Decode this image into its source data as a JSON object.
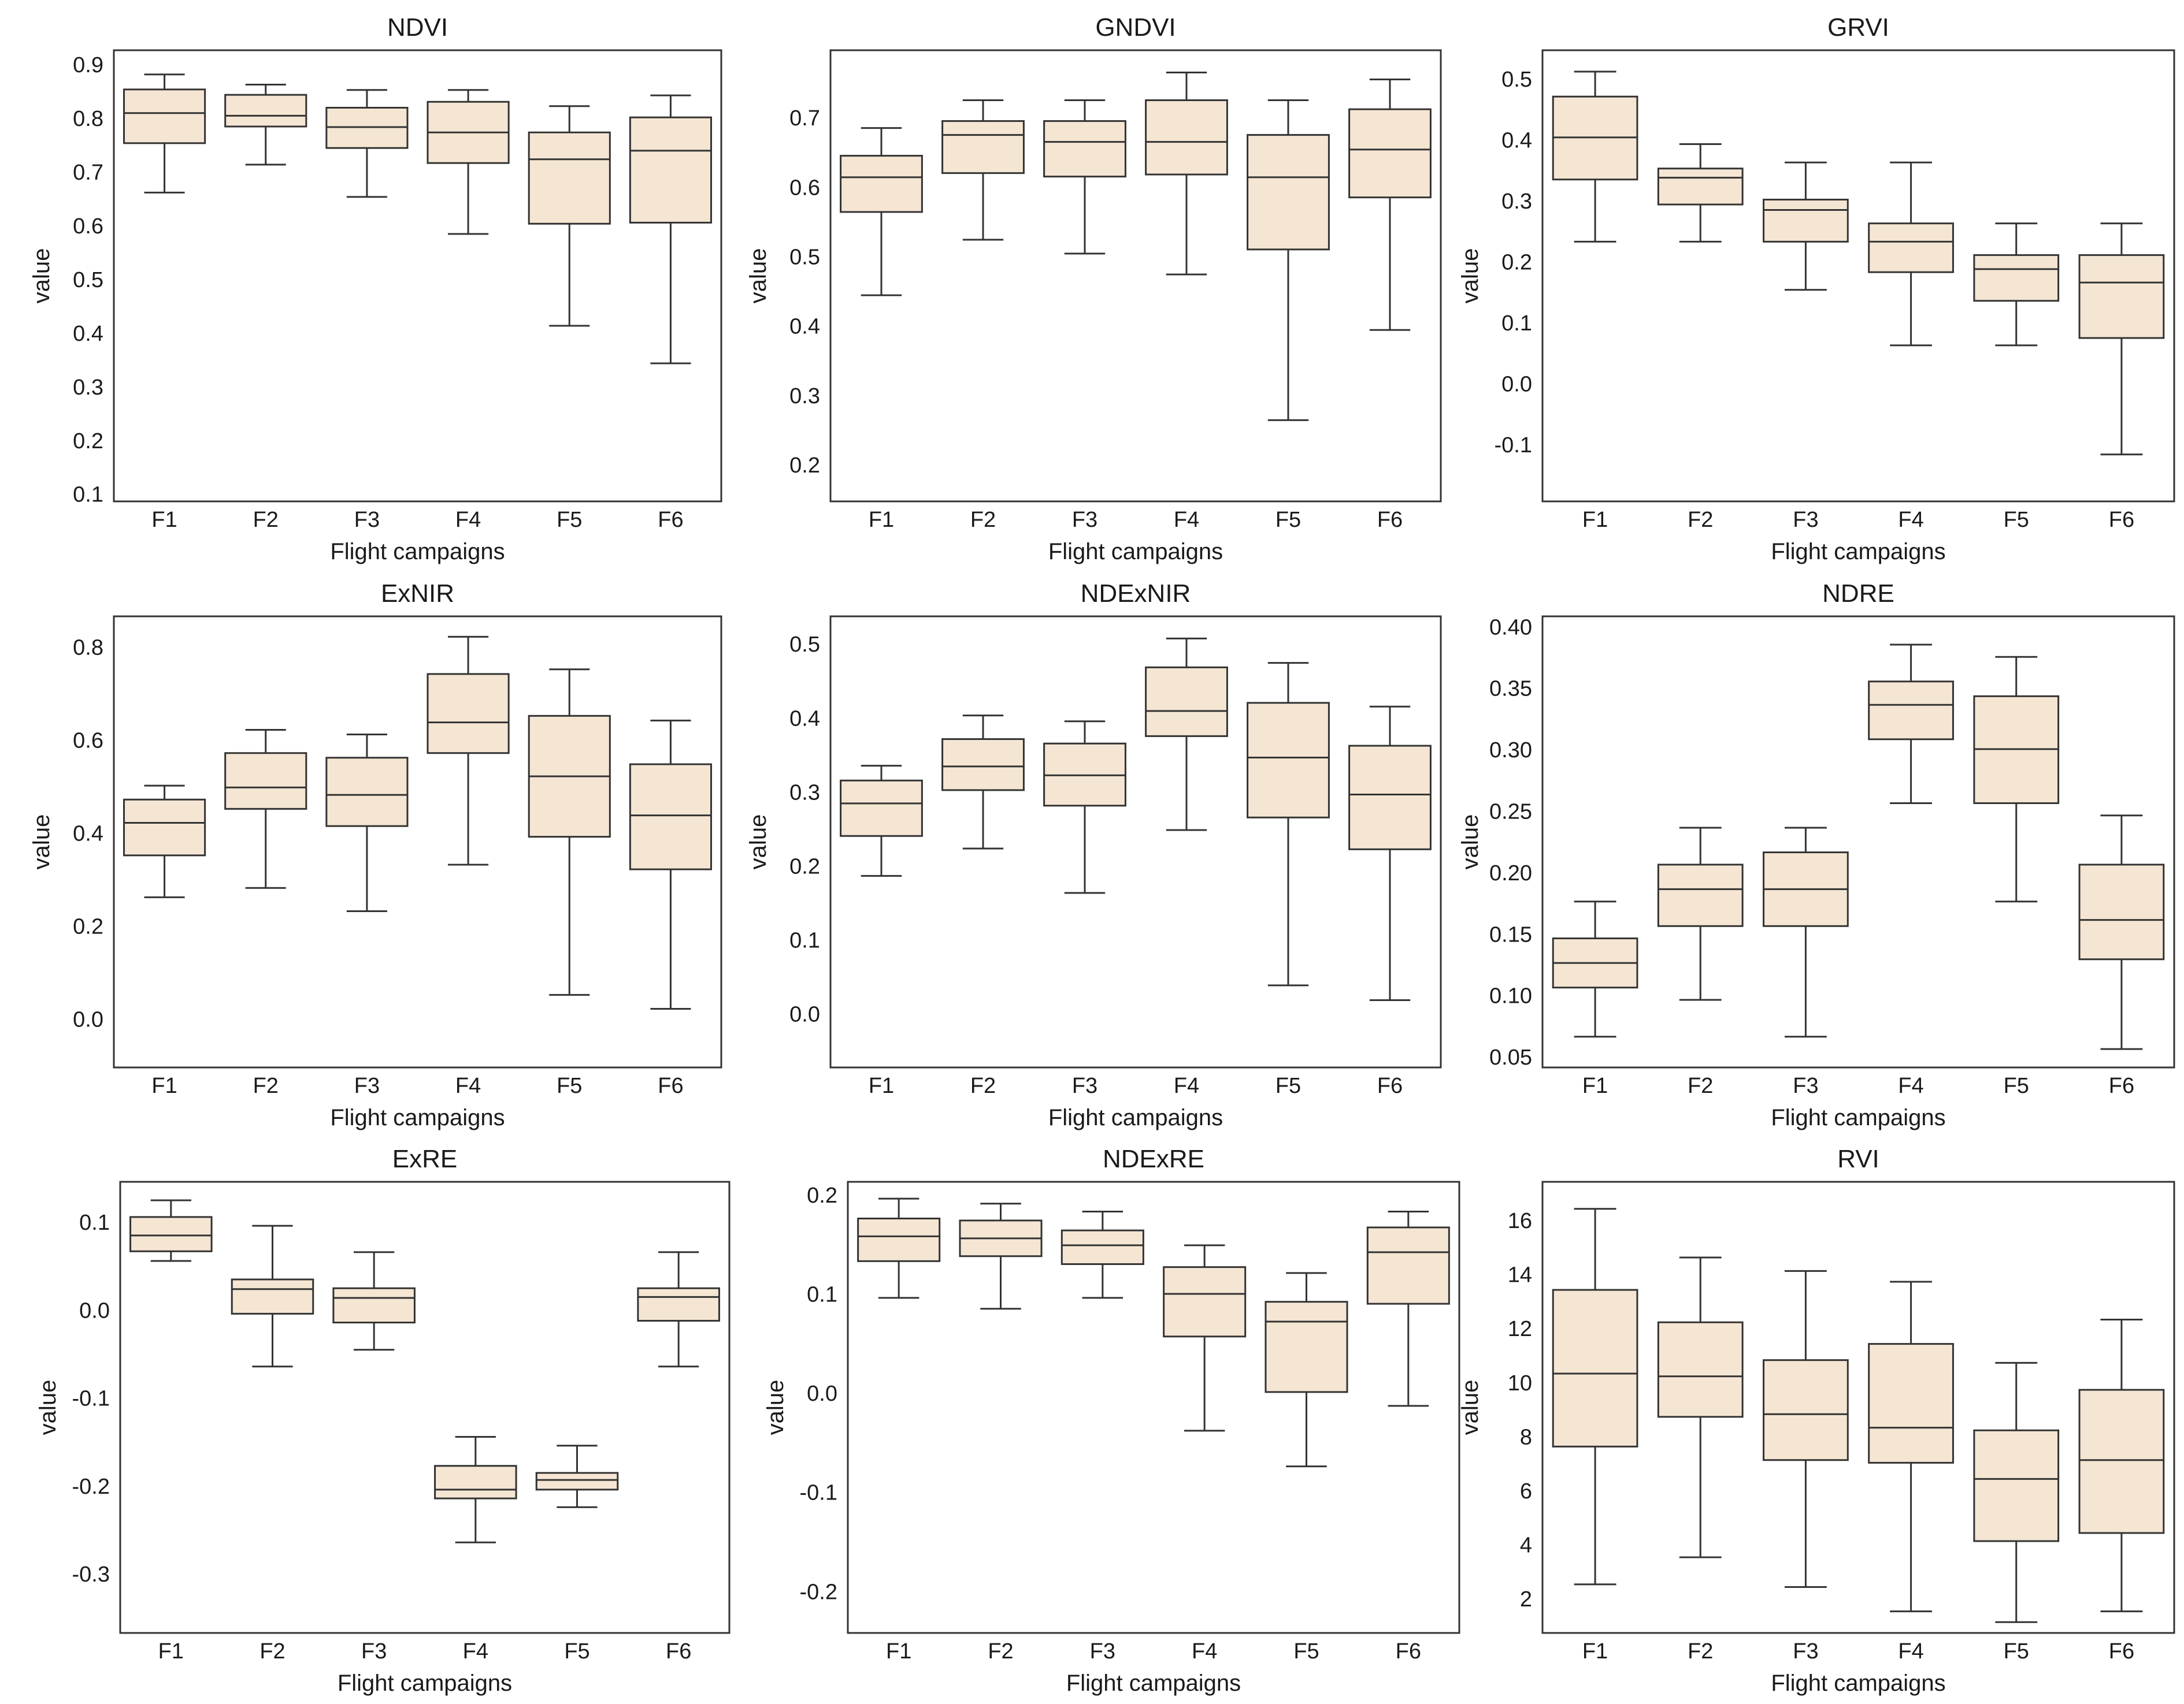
{
  "chart_data": [
    {
      "type": "box",
      "title": "NDVI",
      "xlabel": "Flight campaigns",
      "ylabel": "value",
      "ylim": [
        0.09,
        0.93
      ],
      "yticks": [
        "0.1",
        "0.2",
        "0.3",
        "0.4",
        "0.5",
        "0.6",
        "0.7",
        "0.8",
        "0.9"
      ],
      "categories": [
        "F1",
        "F2",
        "F3",
        "F4",
        "F5",
        "F6"
      ],
      "boxes": [
        {
          "min": 0.665,
          "q1": 0.757,
          "median": 0.813,
          "q3": 0.857,
          "max": 0.885
        },
        {
          "min": 0.717,
          "q1": 0.788,
          "median": 0.808,
          "q3": 0.847,
          "max": 0.866
        },
        {
          "min": 0.657,
          "q1": 0.748,
          "median": 0.787,
          "q3": 0.823,
          "max": 0.856
        },
        {
          "min": 0.588,
          "q1": 0.72,
          "median": 0.777,
          "q3": 0.834,
          "max": 0.856
        },
        {
          "min": 0.417,
          "q1": 0.607,
          "median": 0.727,
          "q3": 0.777,
          "max": 0.826
        },
        {
          "min": 0.347,
          "q1": 0.609,
          "median": 0.743,
          "q3": 0.805,
          "max": 0.846
        }
      ]
    },
    {
      "type": "box",
      "title": "GNDVI",
      "xlabel": "Flight campaigns",
      "ylabel": "value",
      "ylim": [
        0.15,
        0.8
      ],
      "yticks": [
        "0.2",
        "0.3",
        "0.4",
        "0.5",
        "0.6",
        "0.7"
      ],
      "categories": [
        "F1",
        "F2",
        "F3",
        "F4",
        "F5",
        "F6"
      ],
      "boxes": [
        {
          "min": 0.447,
          "q1": 0.567,
          "median": 0.617,
          "q3": 0.648,
          "max": 0.688
        },
        {
          "min": 0.527,
          "q1": 0.623,
          "median": 0.678,
          "q3": 0.698,
          "max": 0.728
        },
        {
          "min": 0.507,
          "q1": 0.618,
          "median": 0.668,
          "q3": 0.698,
          "max": 0.728
        },
        {
          "min": 0.477,
          "q1": 0.621,
          "median": 0.668,
          "q3": 0.728,
          "max": 0.768
        },
        {
          "min": 0.267,
          "q1": 0.513,
          "median": 0.617,
          "q3": 0.678,
          "max": 0.728
        },
        {
          "min": 0.397,
          "q1": 0.588,
          "median": 0.657,
          "q3": 0.715,
          "max": 0.758
        }
      ]
    },
    {
      "type": "box",
      "title": "GRVI",
      "xlabel": "Flight campaigns",
      "ylabel": "value",
      "ylim": [
        -0.19,
        0.55
      ],
      "yticks": [
        "-0.1",
        "0.0",
        "0.1",
        "0.2",
        "0.3",
        "0.4",
        "0.5"
      ],
      "categories": [
        "F1",
        "F2",
        "F3",
        "F4",
        "F5",
        "F6"
      ],
      "boxes": [
        {
          "min": 0.236,
          "q1": 0.338,
          "median": 0.407,
          "q3": 0.474,
          "max": 0.515
        },
        {
          "min": 0.236,
          "q1": 0.297,
          "median": 0.341,
          "q3": 0.356,
          "max": 0.396
        },
        {
          "min": 0.157,
          "q1": 0.236,
          "median": 0.288,
          "q3": 0.305,
          "max": 0.366
        },
        {
          "min": 0.066,
          "q1": 0.186,
          "median": 0.236,
          "q3": 0.266,
          "max": 0.366
        },
        {
          "min": 0.066,
          "q1": 0.139,
          "median": 0.191,
          "q3": 0.214,
          "max": 0.266
        },
        {
          "min": -0.113,
          "q1": 0.078,
          "median": 0.169,
          "q3": 0.214,
          "max": 0.266
        }
      ]
    },
    {
      "type": "box",
      "title": "ExNIR",
      "xlabel": "Flight campaigns",
      "ylabel": "value",
      "ylim": [
        -0.1,
        0.87
      ],
      "yticks": [
        "0.0",
        "0.2",
        "0.4",
        "0.6",
        "0.8"
      ],
      "categories": [
        "F1",
        "F2",
        "F3",
        "F4",
        "F5",
        "F6"
      ],
      "boxes": [
        {
          "min": 0.266,
          "q1": 0.356,
          "median": 0.426,
          "q3": 0.476,
          "max": 0.506
        },
        {
          "min": 0.286,
          "q1": 0.456,
          "median": 0.502,
          "q3": 0.576,
          "max": 0.626
        },
        {
          "min": 0.236,
          "q1": 0.419,
          "median": 0.486,
          "q3": 0.566,
          "max": 0.616
        },
        {
          "min": 0.336,
          "q1": 0.576,
          "median": 0.642,
          "q3": 0.746,
          "max": 0.826
        },
        {
          "min": 0.056,
          "q1": 0.396,
          "median": 0.526,
          "q3": 0.656,
          "max": 0.756
        },
        {
          "min": 0.026,
          "q1": 0.326,
          "median": 0.442,
          "q3": 0.552,
          "max": 0.646
        }
      ]
    },
    {
      "type": "box",
      "title": "NDExNIR",
      "xlabel": "Flight campaigns",
      "ylabel": "value",
      "ylim": [
        -0.07,
        0.54
      ],
      "yticks": [
        "0.0",
        "0.1",
        "0.2",
        "0.3",
        "0.4",
        "0.5"
      ],
      "categories": [
        "F1",
        "F2",
        "F3",
        "F4",
        "F5",
        "F6"
      ],
      "boxes": [
        {
          "min": 0.189,
          "q1": 0.243,
          "median": 0.287,
          "q3": 0.318,
          "max": 0.338
        },
        {
          "min": 0.226,
          "q1": 0.305,
          "median": 0.337,
          "q3": 0.374,
          "max": 0.406
        },
        {
          "min": 0.166,
          "q1": 0.284,
          "median": 0.325,
          "q3": 0.368,
          "max": 0.398
        },
        {
          "min": 0.251,
          "q1": 0.378,
          "median": 0.412,
          "q3": 0.471,
          "max": 0.51
        },
        {
          "min": 0.041,
          "q1": 0.268,
          "median": 0.349,
          "q3": 0.423,
          "max": 0.477
        },
        {
          "min": 0.021,
          "q1": 0.225,
          "median": 0.299,
          "q3": 0.365,
          "max": 0.418
        }
      ]
    },
    {
      "type": "box",
      "title": "NDRE",
      "xlabel": "Flight campaigns",
      "ylabel": "value",
      "ylim": [
        0.043,
        0.41
      ],
      "yticks": [
        "0.05",
        "0.10",
        "0.15",
        "0.20",
        "0.25",
        "0.30",
        "0.35",
        "0.40"
      ],
      "categories": [
        "F1",
        "F2",
        "F3",
        "F4",
        "F5",
        "F6"
      ],
      "boxes": [
        {
          "min": 0.068,
          "q1": 0.108,
          "median": 0.128,
          "q3": 0.148,
          "max": 0.178
        },
        {
          "min": 0.098,
          "q1": 0.158,
          "median": 0.188,
          "q3": 0.208,
          "max": 0.238
        },
        {
          "min": 0.068,
          "q1": 0.158,
          "median": 0.188,
          "q3": 0.218,
          "max": 0.238
        },
        {
          "min": 0.258,
          "q1": 0.31,
          "median": 0.338,
          "q3": 0.357,
          "max": 0.387
        },
        {
          "min": 0.178,
          "q1": 0.258,
          "median": 0.302,
          "q3": 0.345,
          "max": 0.377
        },
        {
          "min": 0.058,
          "q1": 0.131,
          "median": 0.163,
          "q3": 0.208,
          "max": 0.248
        }
      ]
    },
    {
      "type": "box",
      "title": "ExRE",
      "xlabel": "Flight campaigns",
      "ylabel": "value",
      "ylim": [
        -0.365,
        0.148
      ],
      "yticks": [
        "-0.3",
        "-0.2",
        "-0.1",
        "0.0",
        "0.1"
      ],
      "categories": [
        "F1",
        "F2",
        "F3",
        "F4",
        "F5",
        "F6"
      ],
      "boxes": [
        {
          "min": 0.058,
          "q1": 0.069,
          "median": 0.087,
          "q3": 0.108,
          "max": 0.127
        },
        {
          "min": -0.062,
          "q1": -0.002,
          "median": 0.026,
          "q3": 0.037,
          "max": 0.098
        },
        {
          "min": -0.043,
          "q1": -0.012,
          "median": 0.016,
          "q3": 0.027,
          "max": 0.068
        },
        {
          "min": -0.262,
          "q1": -0.212,
          "median": -0.202,
          "q3": -0.175,
          "max": -0.142
        },
        {
          "min": -0.222,
          "q1": -0.202,
          "median": -0.191,
          "q3": -0.183,
          "max": -0.152
        },
        {
          "min": -0.062,
          "q1": -0.01,
          "median": 0.017,
          "q3": 0.027,
          "max": 0.068
        }
      ]
    },
    {
      "type": "box",
      "title": "NDExRE",
      "xlabel": "Flight campaigns",
      "ylabel": "value",
      "ylim": [
        -0.24,
        0.215
      ],
      "yticks": [
        "-0.2",
        "-0.1",
        "0.0",
        "0.1",
        "0.2"
      ],
      "categories": [
        "F1",
        "F2",
        "F3",
        "F4",
        "F5",
        "F6"
      ],
      "boxes": [
        {
          "min": 0.098,
          "q1": 0.135,
          "median": 0.16,
          "q3": 0.178,
          "max": 0.198
        },
        {
          "min": 0.087,
          "q1": 0.14,
          "median": 0.158,
          "q3": 0.176,
          "max": 0.193
        },
        {
          "min": 0.098,
          "q1": 0.132,
          "median": 0.151,
          "q3": 0.166,
          "max": 0.185
        },
        {
          "min": -0.036,
          "q1": 0.059,
          "median": 0.102,
          "q3": 0.129,
          "max": 0.151
        },
        {
          "min": -0.072,
          "q1": 0.003,
          "median": 0.074,
          "q3": 0.094,
          "max": 0.123
        },
        {
          "min": -0.011,
          "q1": 0.092,
          "median": 0.144,
          "q3": 0.169,
          "max": 0.185
        }
      ]
    },
    {
      "type": "box",
      "title": "RVI",
      "xlabel": "Flight campaigns",
      "ylabel": "value",
      "ylim": [
        0.8,
        17.5
      ],
      "yticks": [
        "2",
        "4",
        "6",
        "8",
        "10",
        "12",
        "14",
        "16"
      ],
      "categories": [
        "F1",
        "F2",
        "F3",
        "F4",
        "F5",
        "F6"
      ],
      "boxes": [
        {
          "min": 2.6,
          "q1": 7.7,
          "median": 10.4,
          "q3": 13.5,
          "max": 16.5
        },
        {
          "min": 3.6,
          "q1": 8.8,
          "median": 10.3,
          "q3": 12.3,
          "max": 14.7
        },
        {
          "min": 2.5,
          "q1": 7.2,
          "median": 8.9,
          "q3": 10.9,
          "max": 14.2
        },
        {
          "min": 1.6,
          "q1": 7.1,
          "median": 8.4,
          "q3": 11.5,
          "max": 13.8
        },
        {
          "min": 1.2,
          "q1": 4.2,
          "median": 6.5,
          "q3": 8.3,
          "max": 10.8
        },
        {
          "min": 1.6,
          "q1": 4.5,
          "median": 7.2,
          "q3": 9.8,
          "max": 12.4
        }
      ]
    }
  ]
}
